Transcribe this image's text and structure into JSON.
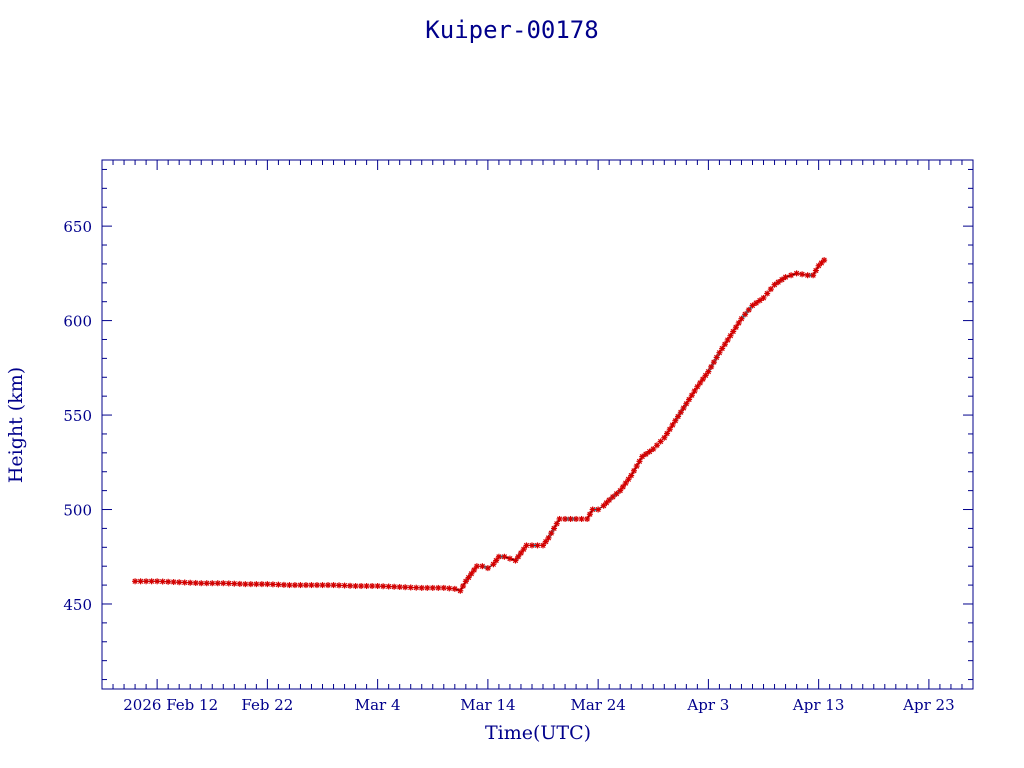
{
  "chart_data": {
    "type": "line",
    "title": "Kuiper-00178",
    "xlabel": "Time(UTC)",
    "ylabel": "Height (km)",
    "x_tick_labels": [
      "2026 Feb 12",
      "Feb 22",
      "Mar  4",
      "Mar 14",
      "Mar 24",
      "Apr  3",
      "Apr 13",
      "Apr 23"
    ],
    "y_tick_labels": [
      "450",
      "500",
      "550",
      "600",
      "650"
    ],
    "y_ticks": [
      450,
      500,
      550,
      600,
      650
    ],
    "ylim": [
      405,
      685
    ],
    "xlim": [
      "2026-02-07",
      "2026-04-27"
    ],
    "x_ticks": [
      "2026-02-12",
      "2026-02-22",
      "2026-03-04",
      "2026-03-14",
      "2026-03-24",
      "2026-04-03",
      "2026-04-13",
      "2026-04-23"
    ],
    "grid": false,
    "colors": {
      "axis": "#00008b",
      "line": "#000000",
      "marker": "#d40000",
      "highlight": "#00d8f0"
    },
    "series": [
      {
        "x": [
          "2026-02-10T00:00",
          "2026-02-12T00:00",
          "2026-02-14T00:00",
          "2026-02-16T00:00",
          "2026-02-18T00:00",
          "2026-02-20T00:00",
          "2026-02-22T00:00",
          "2026-02-24T00:00",
          "2026-02-26T00:00",
          "2026-02-28T00:00",
          "2026-03-02T00:00",
          "2026-03-04T00:00",
          "2026-03-06T00:00",
          "2026-03-08T00:00",
          "2026-03-10T00:00",
          "2026-03-11T00:00",
          "2026-03-11T12:00",
          "2026-03-12T00:00",
          "2026-03-12T12:00",
          "2026-03-13T00:00",
          "2026-03-13T12:00",
          "2026-03-14T00:00",
          "2026-03-14T12:00",
          "2026-03-15T00:00",
          "2026-03-15T12:00",
          "2026-03-16T00:00",
          "2026-03-16T12:00",
          "2026-03-17T00:00",
          "2026-03-17T12:00",
          "2026-03-18T00:00",
          "2026-03-18T12:00",
          "2026-03-19T00:00",
          "2026-03-19T12:00",
          "2026-03-20T00:00",
          "2026-03-20T12:00",
          "2026-03-21T00:00",
          "2026-03-22T00:00",
          "2026-03-23T00:00",
          "2026-03-23T12:00",
          "2026-03-24T00:00",
          "2026-03-24T12:00",
          "2026-03-25T00:00",
          "2026-03-26T00:00",
          "2026-03-27T00:00",
          "2026-03-28T00:00",
          "2026-03-29T00:00",
          "2026-03-30T00:00",
          "2026-03-31T00:00",
          "2026-04-01T00:00",
          "2026-04-02T00:00",
          "2026-04-03T00:00",
          "2026-04-04T00:00",
          "2026-04-05T00:00",
          "2026-04-06T00:00",
          "2026-04-07T00:00",
          "2026-04-08T00:00",
          "2026-04-09T00:00",
          "2026-04-10T00:00",
          "2026-04-11T00:00",
          "2026-04-12T00:00",
          "2026-04-12T12:00",
          "2026-04-13T00:00",
          "2026-04-13T12:00"
        ],
        "y": [
          462,
          462,
          461.5,
          461,
          461,
          460.5,
          460.5,
          460,
          460,
          460,
          459.5,
          459.5,
          459,
          458.5,
          458.5,
          458,
          457,
          462,
          466,
          470,
          470,
          469,
          471,
          475,
          475,
          474,
          473,
          477,
          481,
          481,
          481,
          481,
          485,
          490,
          495,
          495,
          495,
          495,
          500,
          500,
          502,
          505,
          510,
          518,
          528,
          532,
          538,
          547,
          556,
          565,
          573,
          583,
          592,
          601,
          608,
          612,
          619,
          623,
          625,
          624,
          624,
          629,
          632
        ]
      }
    ]
  }
}
